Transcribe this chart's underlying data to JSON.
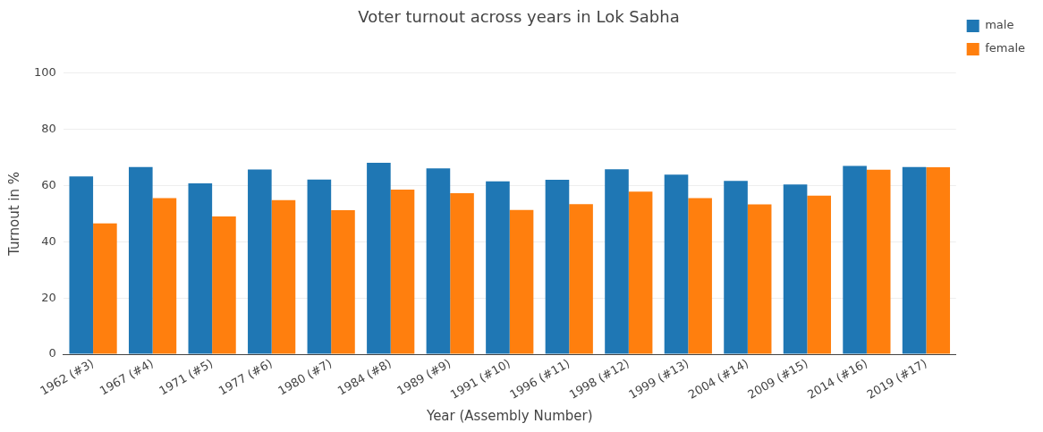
{
  "chart_data": {
    "type": "bar",
    "title": "Voter turnout across years in Lok Sabha",
    "xlabel": "Year (Assembly Number)",
    "ylabel": "Turnout in %",
    "categories": [
      "1962 (#3)",
      "1967 (#4)",
      "1971 (#5)",
      "1977 (#6)",
      "1980 (#7)",
      "1984 (#8)",
      "1989 (#9)",
      "1991 (#10)",
      "1996 (#11)",
      "1998 (#12)",
      "1999 (#13)",
      "2004 (#14)",
      "2009 (#15)",
      "2014 (#16)",
      "2019 (#17)"
    ],
    "series": [
      {
        "name": "male",
        "color": "#1f77b4",
        "values": [
          63.2,
          66.6,
          60.8,
          65.7,
          62.1,
          68.1,
          66.1,
          61.5,
          62.0,
          65.8,
          63.9,
          61.6,
          60.4,
          67.0,
          66.6
        ]
      },
      {
        "name": "female",
        "color": "#ff7f0e",
        "values": [
          46.5,
          55.5,
          49.0,
          54.8,
          51.2,
          58.5,
          57.3,
          51.3,
          53.4,
          57.8,
          55.5,
          53.3,
          56.4,
          65.6,
          66.5
        ]
      }
    ],
    "ylim": [
      0,
      100
    ],
    "yticks": [
      0,
      20,
      40,
      60,
      80,
      100
    ],
    "grid": "y",
    "legend": "top right"
  }
}
